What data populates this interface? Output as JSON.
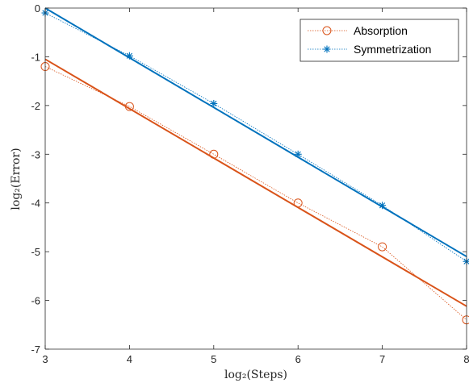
{
  "chart_data": {
    "type": "line",
    "xlabel": "log₂(Steps)",
    "ylabel": "log₂(Error)",
    "xlim": [
      3,
      8
    ],
    "ylim": [
      -7,
      0
    ],
    "xticks": [
      3,
      4,
      5,
      6,
      7,
      8
    ],
    "yticks": [
      0,
      -1,
      -2,
      -3,
      -4,
      -5,
      -6,
      -7
    ],
    "grid": false,
    "legend_position": "top-right",
    "series": [
      {
        "name": "Absorption",
        "color": "#D95319",
        "marker": "circle",
        "line_style": "dotted",
        "x": [
          3,
          4,
          5,
          6,
          7,
          8
        ],
        "y": [
          -1.2,
          -2.02,
          -3.0,
          -4.0,
          -4.9,
          -6.4
        ]
      },
      {
        "name": "Symmetrization",
        "color": "#0072BD",
        "marker": "asterisk",
        "line_style": "dotted",
        "x": [
          3,
          4,
          5,
          6,
          7,
          8
        ],
        "y": [
          -0.1,
          -0.98,
          -1.96,
          -3.0,
          -4.05,
          -5.2
        ]
      }
    ],
    "fit_lines": [
      {
        "color": "#D95319",
        "x": [
          3,
          8
        ],
        "y": [
          -1.05,
          -6.12
        ]
      },
      {
        "color": "#0072BD",
        "x": [
          3,
          8
        ],
        "y": [
          0.0,
          -5.1
        ]
      }
    ]
  }
}
